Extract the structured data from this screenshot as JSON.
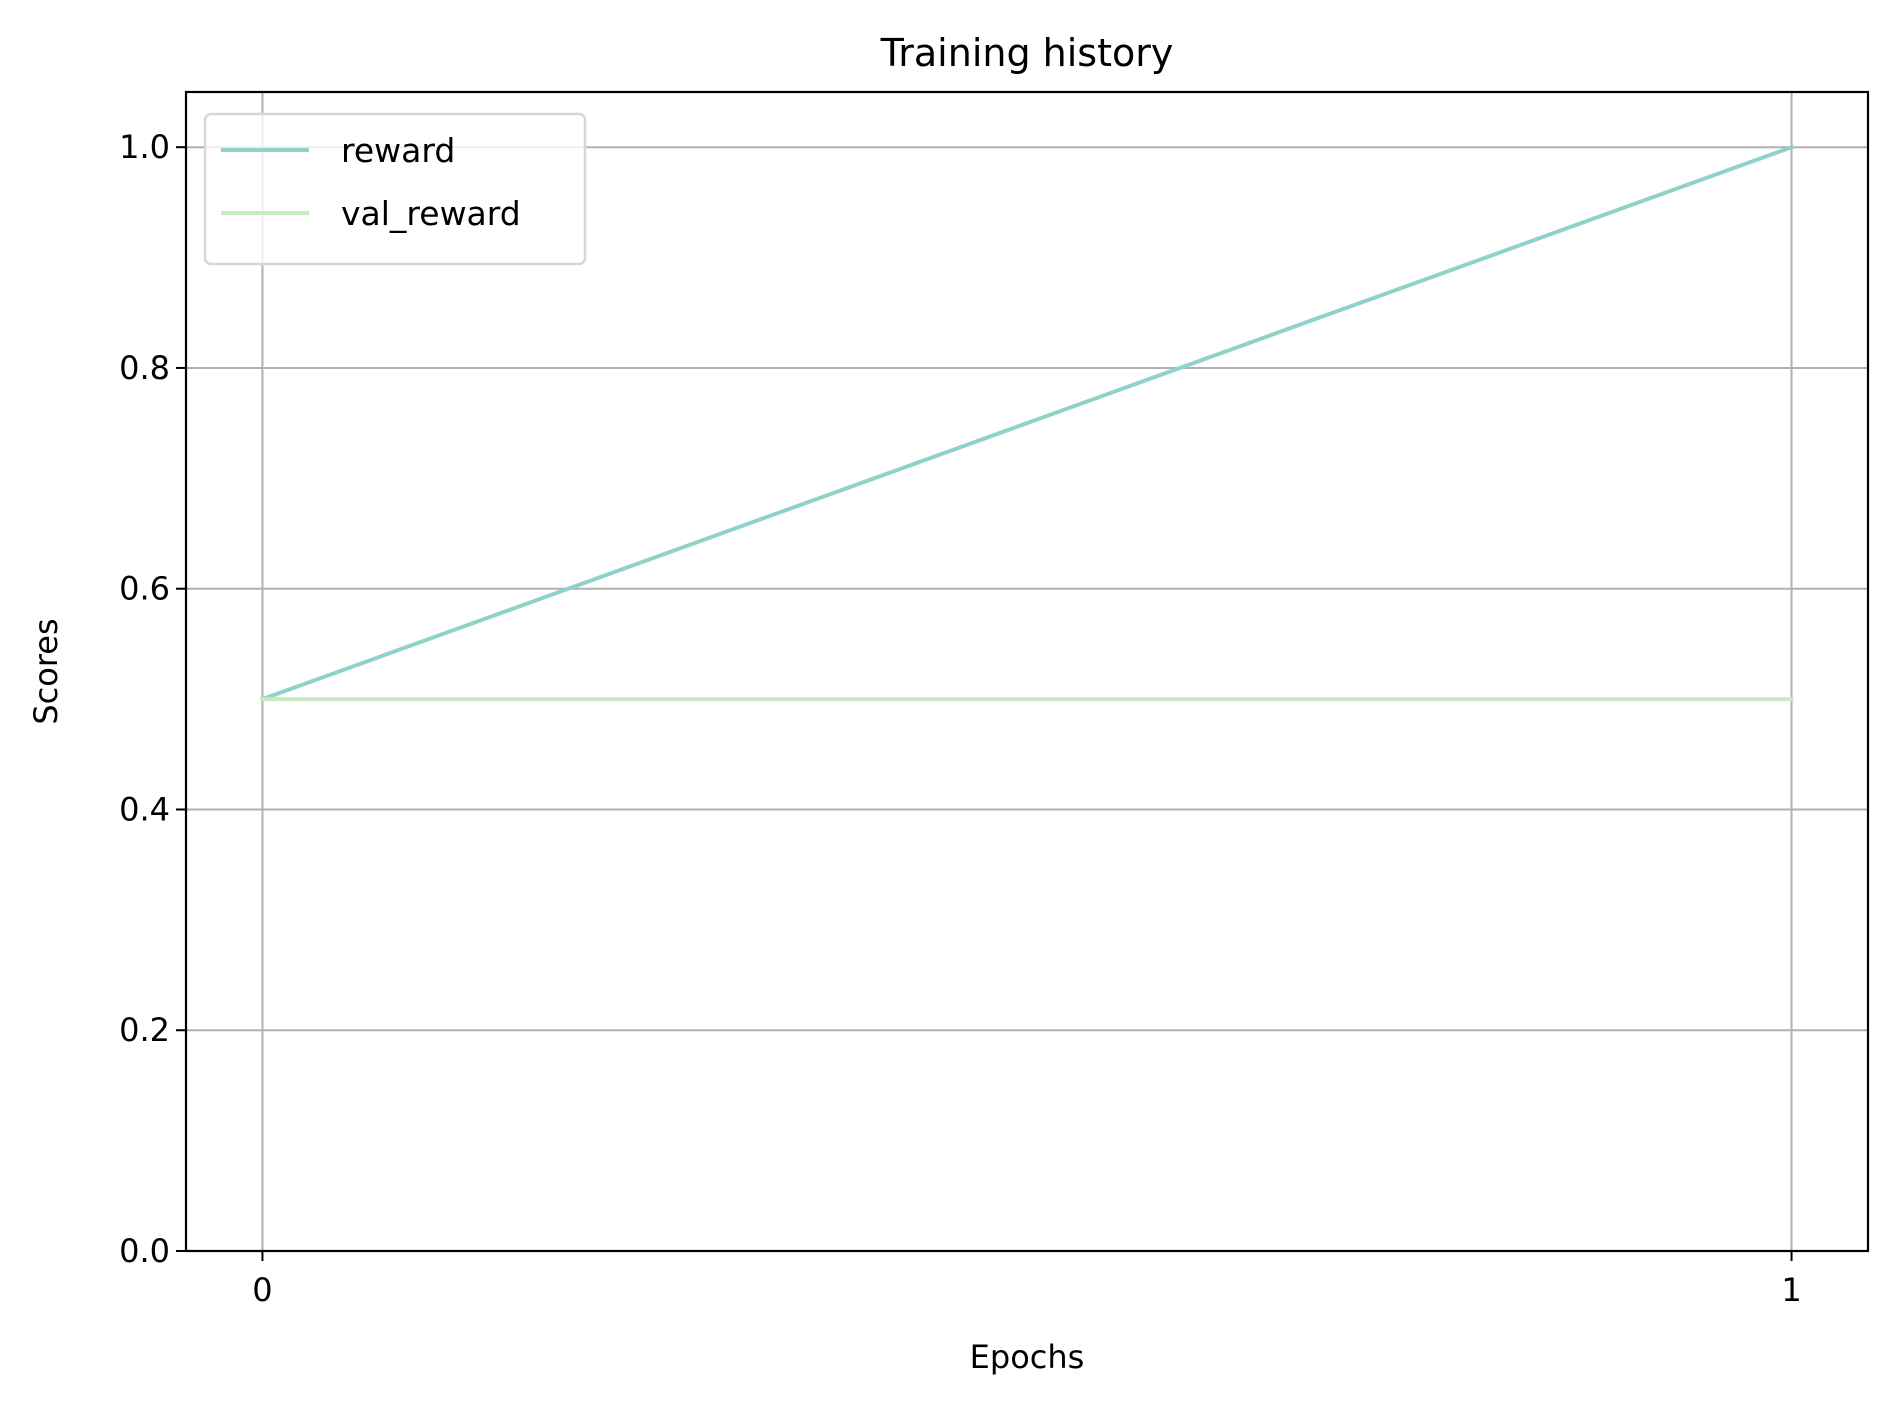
{
  "chart_data": {
    "type": "line",
    "title": "Training history",
    "xlabel": "Epochs",
    "ylabel": "Scores",
    "x": [
      0,
      1
    ],
    "xticks": [
      0,
      1
    ],
    "xtick_labels": [
      "0",
      "1"
    ],
    "yticks": [
      0.0,
      0.2,
      0.4,
      0.6,
      0.8,
      1.0
    ],
    "ytick_labels": [
      "0.0",
      "0.2",
      "0.4",
      "0.6",
      "0.8",
      "1.0"
    ],
    "xlim": [
      -0.05,
      1.05
    ],
    "ylim": [
      0.0,
      1.05
    ],
    "grid": true,
    "legend_position": "top-left",
    "series": [
      {
        "name": "reward",
        "values": [
          0.5,
          1.0
        ],
        "color": "#8dd3c7"
      },
      {
        "name": "val_reward",
        "values": [
          0.5,
          0.5
        ],
        "color": "#c7eac0"
      }
    ]
  }
}
